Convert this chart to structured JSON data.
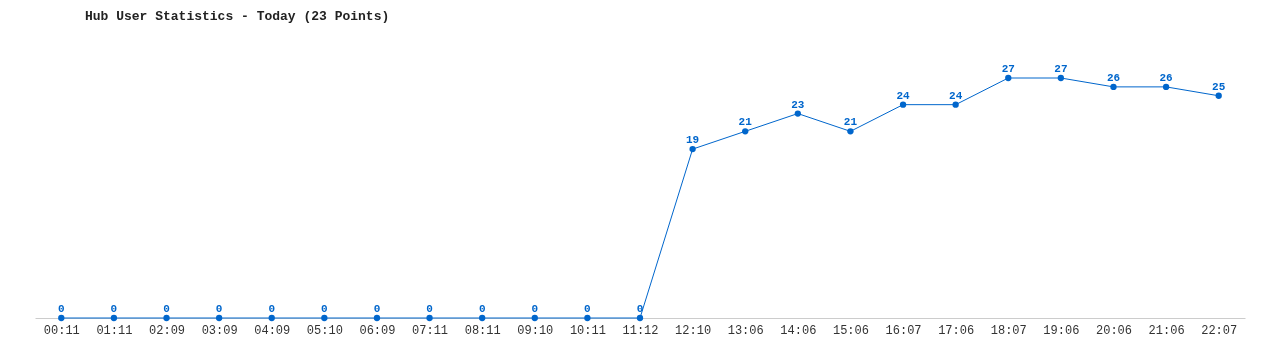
{
  "chart_data": {
    "type": "line",
    "title": "Hub User Statistics - Today (23 Points)",
    "categories": [
      "00:11",
      "01:11",
      "02:09",
      "03:09",
      "04:09",
      "05:10",
      "06:09",
      "07:11",
      "08:11",
      "09:10",
      "10:11",
      "11:12",
      "12:10",
      "13:06",
      "14:06",
      "15:06",
      "16:07",
      "17:06",
      "18:07",
      "19:06",
      "20:06",
      "21:06",
      "22:07"
    ],
    "series": [
      {
        "color": "#0066cc",
        "values": [
          0,
          0,
          0,
          0,
          0,
          0,
          0,
          0,
          0,
          0,
          0,
          0,
          19,
          21,
          23,
          21,
          24,
          24,
          27,
          27,
          26,
          26,
          25
        ]
      }
    ],
    "data_labels": true,
    "marker": "circle",
    "grid": false
  }
}
